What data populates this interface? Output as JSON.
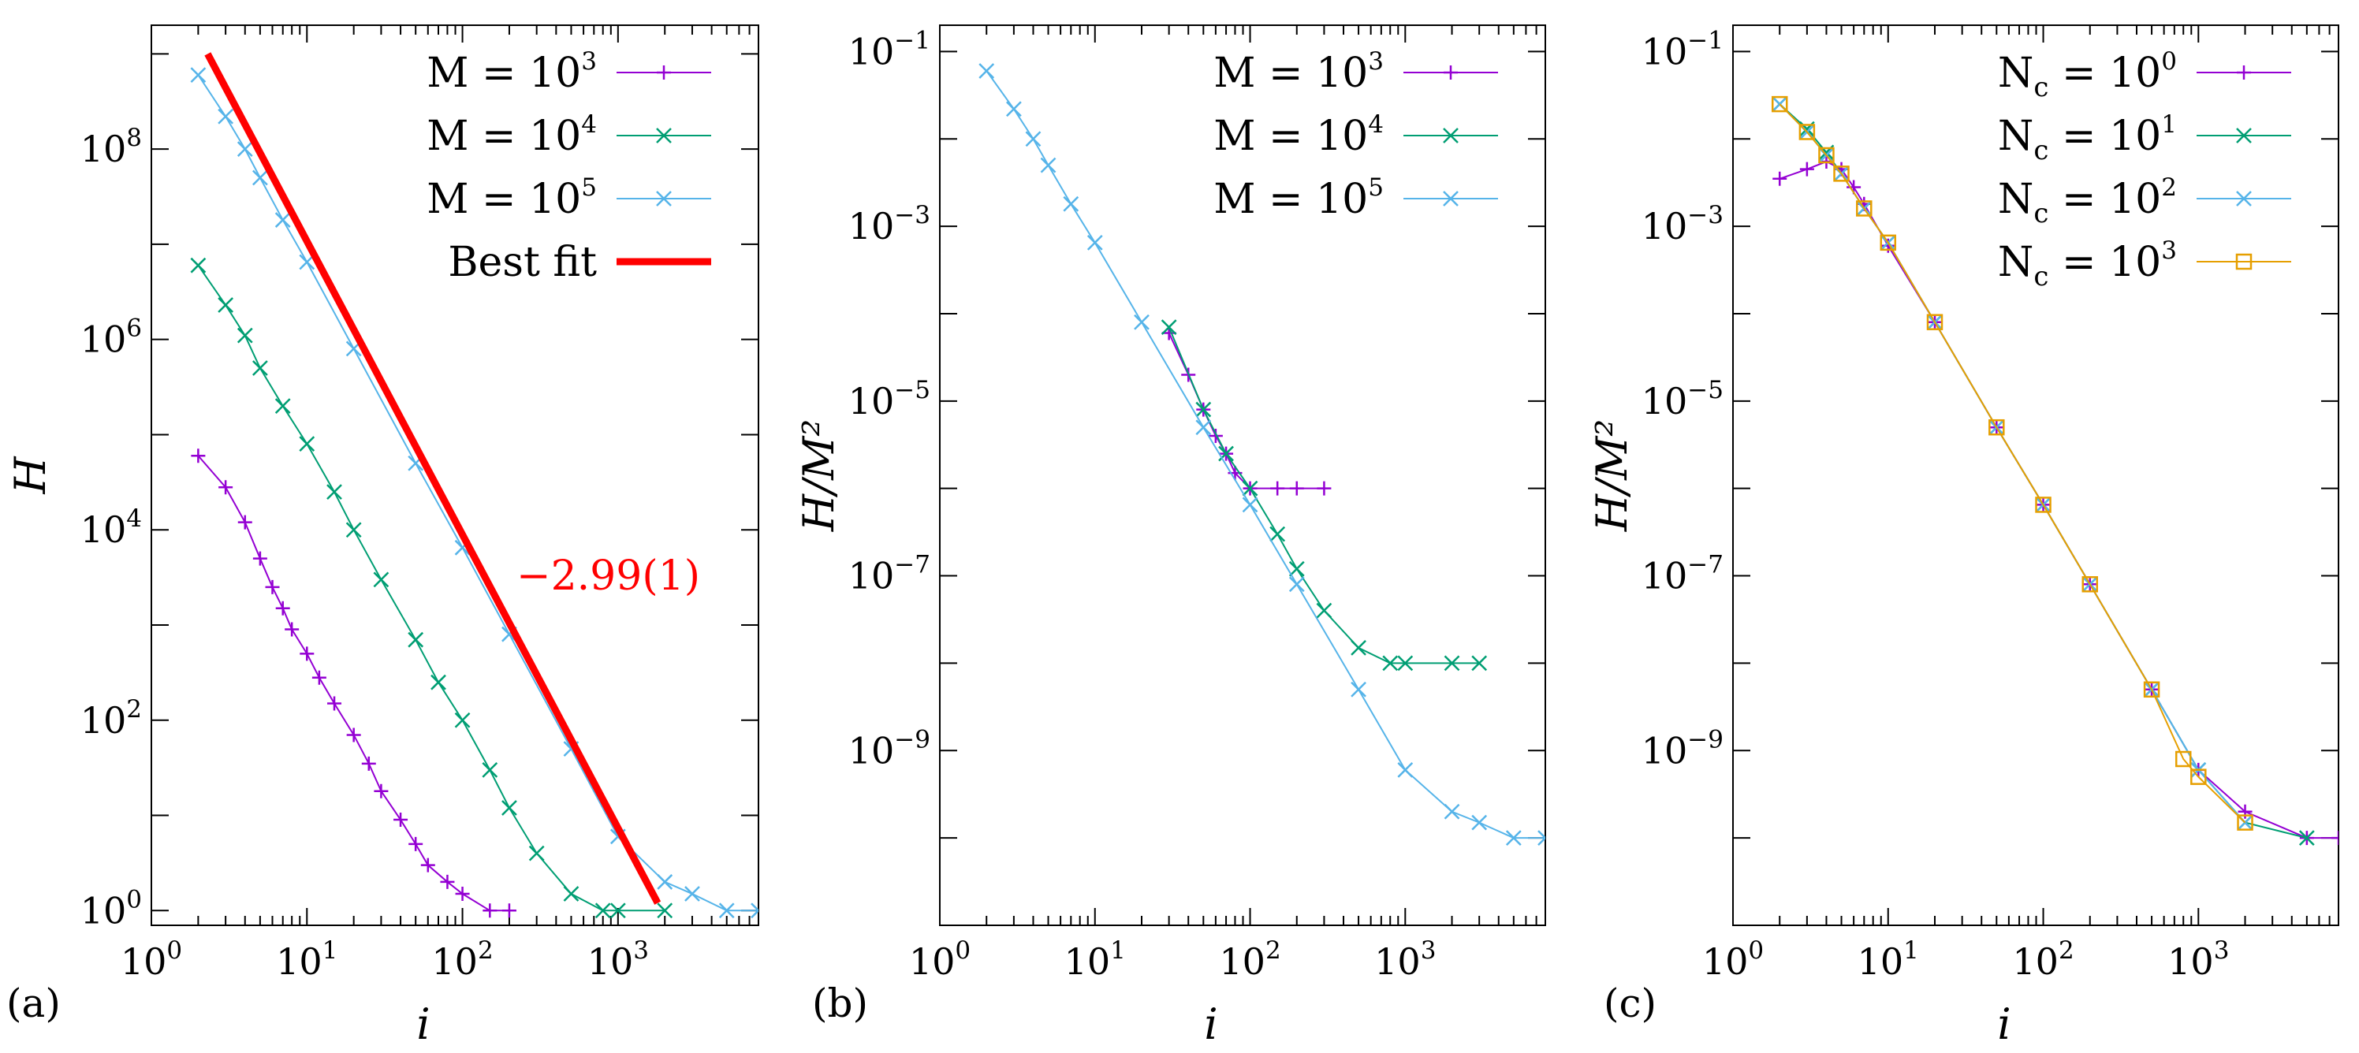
{
  "chart_data": [
    {
      "type": "line",
      "panel_label": "(a)",
      "xscale": "log",
      "yscale": "log",
      "xlim": [
        1,
        8000
      ],
      "ylim": [
        0.7,
        2000000000
      ],
      "xticks": [
        {
          "base": "10",
          "exp": "0",
          "v": 1
        },
        {
          "base": "10",
          "exp": "1",
          "v": 10
        },
        {
          "base": "10",
          "exp": "2",
          "v": 100
        },
        {
          "base": "10",
          "exp": "3",
          "v": 1000
        }
      ],
      "yticks": [
        {
          "base": "10",
          "exp": "0",
          "v": 1
        },
        {
          "base": "10",
          "exp": "2",
          "v": 100
        },
        {
          "base": "10",
          "exp": "4",
          "v": 10000
        },
        {
          "base": "10",
          "exp": "6",
          "v": 1000000
        },
        {
          "base": "10",
          "exp": "8",
          "v": 100000000
        }
      ],
      "xlabel": "i",
      "ylabel": "H",
      "legend_position": "top-right",
      "series": [
        {
          "name": "M = 10^3",
          "label_lhs": "M = 10",
          "label_exp": "3",
          "color": "#9400d3",
          "marker": "plus",
          "points": [
            [
              2,
              60000
            ],
            [
              3,
              28000
            ],
            [
              4,
              12000
            ],
            [
              5,
              5000
            ],
            [
              6,
              2500
            ],
            [
              7,
              1500
            ],
            [
              8,
              900
            ],
            [
              10,
              500
            ],
            [
              12,
              280
            ],
            [
              15,
              150
            ],
            [
              20,
              70
            ],
            [
              25,
              35
            ],
            [
              30,
              18
            ],
            [
              40,
              9
            ],
            [
              50,
              5
            ],
            [
              60,
              3
            ],
            [
              80,
              2
            ],
            [
              100,
              1.5
            ],
            [
              150,
              1
            ],
            [
              200,
              1
            ]
          ]
        },
        {
          "name": "M = 10^4",
          "label_lhs": "M = 10",
          "label_exp": "4",
          "color": "#009e73",
          "marker": "cross",
          "points": [
            [
              2,
              6000000
            ],
            [
              3,
              2300000
            ],
            [
              4,
              1100000
            ],
            [
              5,
              500000
            ],
            [
              7,
              200000
            ],
            [
              10,
              80000
            ],
            [
              15,
              25000
            ],
            [
              20,
              10000
            ],
            [
              30,
              3000
            ],
            [
              50,
              700
            ],
            [
              70,
              250
            ],
            [
              100,
              100
            ],
            [
              150,
              30
            ],
            [
              200,
              12
            ],
            [
              300,
              4
            ],
            [
              500,
              1.5
            ],
            [
              800,
              1
            ],
            [
              1000,
              1
            ],
            [
              2000,
              1
            ]
          ]
        },
        {
          "name": "M = 10^5",
          "label_lhs": "M = 10",
          "label_exp": "5",
          "color": "#56b4e9",
          "marker": "cross",
          "points": [
            [
              2,
              600000000
            ],
            [
              3,
              220000000
            ],
            [
              4,
              100000000
            ],
            [
              5,
              50000000
            ],
            [
              7,
              18000000
            ],
            [
              10,
              6500000
            ],
            [
              20,
              800000
            ],
            [
              50,
              50000
            ],
            [
              100,
              6500
            ],
            [
              200,
              800
            ],
            [
              500,
              50
            ],
            [
              1000,
              6
            ],
            [
              2000,
              2
            ],
            [
              3000,
              1.5
            ],
            [
              5000,
              1
            ],
            [
              8000,
              1
            ]
          ]
        },
        {
          "name": "Best fit",
          "color": "#ff0000",
          "marker": "none",
          "points": [
            [
              2.3,
              1000000000
            ],
            [
              1800,
              1.2
            ]
          ]
        }
      ],
      "annotations": [
        {
          "text": "−2.99(1)",
          "color": "#ff0000"
        }
      ]
    },
    {
      "type": "line",
      "panel_label": "(b)",
      "xscale": "log",
      "yscale": "log",
      "xlim": [
        1,
        8000
      ],
      "ylim": [
        1e-11,
        0.2
      ],
      "xticks": [
        {
          "base": "10",
          "exp": "0",
          "v": 1
        },
        {
          "base": "10",
          "exp": "1",
          "v": 10
        },
        {
          "base": "10",
          "exp": "2",
          "v": 100
        },
        {
          "base": "10",
          "exp": "3",
          "v": 1000
        }
      ],
      "yticks": [
        {
          "base": "10",
          "exp": "−9",
          "v": 1e-09
        },
        {
          "base": "10",
          "exp": "−7",
          "v": 1e-07
        },
        {
          "base": "10",
          "exp": "−5",
          "v": 1e-05
        },
        {
          "base": "10",
          "exp": "−3",
          "v": 0.001
        },
        {
          "base": "10",
          "exp": "−1",
          "v": 0.1
        }
      ],
      "xlabel": "i",
      "ylabel": "H/M²",
      "legend_position": "top-right",
      "series": [
        {
          "name": "M = 10^3",
          "label_lhs": "M = 10",
          "label_exp": "3",
          "color": "#9400d3",
          "marker": "plus",
          "points": [
            [
              30,
              6e-05
            ],
            [
              40,
              2e-05
            ],
            [
              50,
              8e-06
            ],
            [
              60,
              4e-06
            ],
            [
              70,
              2.5e-06
            ],
            [
              80,
              1.5e-06
            ],
            [
              100,
              1e-06
            ],
            [
              150,
              1e-06
            ],
            [
              200,
              1e-06
            ],
            [
              300,
              1e-06
            ]
          ]
        },
        {
          "name": "M = 10^4",
          "label_lhs": "M = 10",
          "label_exp": "4",
          "color": "#009e73",
          "marker": "cross",
          "points": [
            [
              30,
              7e-05
            ],
            [
              50,
              8e-06
            ],
            [
              70,
              2.5e-06
            ],
            [
              100,
              1e-06
            ],
            [
              150,
              3e-07
            ],
            [
              200,
              1.2e-07
            ],
            [
              300,
              4e-08
            ],
            [
              500,
              1.5e-08
            ],
            [
              800,
              1e-08
            ],
            [
              1000,
              1e-08
            ],
            [
              2000,
              1e-08
            ],
            [
              3000,
              1e-08
            ]
          ]
        },
        {
          "name": "M = 10^5",
          "label_lhs": "M = 10",
          "label_exp": "5",
          "color": "#56b4e9",
          "marker": "cross",
          "points": [
            [
              2,
              0.06
            ],
            [
              3,
              0.022
            ],
            [
              4,
              0.01
            ],
            [
              5,
              0.005
            ],
            [
              7,
              0.0018
            ],
            [
              10,
              0.00065
            ],
            [
              20,
              8e-05
            ],
            [
              50,
              5e-06
            ],
            [
              100,
              6.5e-07
            ],
            [
              200,
              8e-08
            ],
            [
              500,
              5e-09
            ],
            [
              1000,
              6e-10
            ],
            [
              2000,
              2e-10
            ],
            [
              3000,
              1.5e-10
            ],
            [
              5000,
              1e-10
            ],
            [
              8000,
              1e-10
            ]
          ]
        }
      ]
    },
    {
      "type": "line",
      "panel_label": "(c)",
      "xscale": "log",
      "yscale": "log",
      "xlim": [
        1,
        8000
      ],
      "ylim": [
        1e-11,
        0.2
      ],
      "xticks": [
        {
          "base": "10",
          "exp": "0",
          "v": 1
        },
        {
          "base": "10",
          "exp": "1",
          "v": 10
        },
        {
          "base": "10",
          "exp": "2",
          "v": 100
        },
        {
          "base": "10",
          "exp": "3",
          "v": 1000
        }
      ],
      "yticks": [
        {
          "base": "10",
          "exp": "−9",
          "v": 1e-09
        },
        {
          "base": "10",
          "exp": "−7",
          "v": 1e-07
        },
        {
          "base": "10",
          "exp": "−5",
          "v": 1e-05
        },
        {
          "base": "10",
          "exp": "−3",
          "v": 0.001
        },
        {
          "base": "10",
          "exp": "−1",
          "v": 0.1
        }
      ],
      "xlabel": "i",
      "ylabel": "H/M²",
      "legend_position": "top-right",
      "series": [
        {
          "name": "N_c = 10^0",
          "label_lhs": "N",
          "label_sub": "c",
          "label_mid": " = 10",
          "label_exp": "0",
          "color": "#9400d3",
          "marker": "plus",
          "points": [
            [
              2,
              0.0035
            ],
            [
              3,
              0.0045
            ],
            [
              4,
              0.0055
            ],
            [
              5,
              0.0045
            ],
            [
              6,
              0.0028
            ],
            [
              7,
              0.0018
            ],
            [
              10,
              0.0006
            ],
            [
              20,
              8e-05
            ],
            [
              50,
              5e-06
            ],
            [
              100,
              6.5e-07
            ],
            [
              200,
              8e-08
            ],
            [
              500,
              5e-09
            ],
            [
              1000,
              6e-10
            ],
            [
              2000,
              2e-10
            ],
            [
              5000,
              1e-10
            ],
            [
              8000,
              1e-10
            ]
          ]
        },
        {
          "name": "N_c = 10^1",
          "label_lhs": "N",
          "label_sub": "c",
          "label_mid": " = 10",
          "label_exp": "1",
          "color": "#009e73",
          "marker": "cross",
          "points": [
            [
              2,
              0.025
            ],
            [
              3,
              0.013
            ],
            [
              4,
              0.007
            ],
            [
              5,
              0.004
            ],
            [
              7,
              0.0016
            ],
            [
              10,
              0.00065
            ],
            [
              20,
              8e-05
            ],
            [
              50,
              5e-06
            ],
            [
              100,
              6.5e-07
            ],
            [
              200,
              8e-08
            ],
            [
              500,
              5e-09
            ],
            [
              1000,
              6e-10
            ],
            [
              2000,
              1.5e-10
            ],
            [
              5000,
              1e-10
            ]
          ]
        },
        {
          "name": "N_c = 10^2",
          "label_lhs": "N",
          "label_sub": "c",
          "label_mid": " = 10",
          "label_exp": "2",
          "color": "#56b4e9",
          "marker": "cross",
          "points": [
            [
              2,
              0.025
            ],
            [
              3,
              0.012
            ],
            [
              4,
              0.0065
            ],
            [
              5,
              0.004
            ],
            [
              7,
              0.0016
            ],
            [
              10,
              0.00065
            ],
            [
              20,
              8e-05
            ],
            [
              50,
              5e-06
            ],
            [
              100,
              6.5e-07
            ],
            [
              200,
              8e-08
            ],
            [
              500,
              5e-09
            ],
            [
              1000,
              6e-10
            ],
            [
              2000,
              1.5e-10
            ]
          ]
        },
        {
          "name": "N_c = 10^3",
          "label_lhs": "N",
          "label_sub": "c",
          "label_mid": " = 10",
          "label_exp": "3",
          "color": "#e69f00",
          "marker": "square",
          "points": [
            [
              2,
              0.025
            ],
            [
              3,
              0.012
            ],
            [
              4,
              0.0065
            ],
            [
              5,
              0.004
            ],
            [
              7,
              0.0016
            ],
            [
              10,
              0.00065
            ],
            [
              20,
              8e-05
            ],
            [
              50,
              5e-06
            ],
            [
              100,
              6.5e-07
            ],
            [
              200,
              8e-08
            ],
            [
              500,
              5e-09
            ],
            [
              800,
              8e-10
            ],
            [
              1000,
              5e-10
            ],
            [
              2000,
              1.5e-10
            ]
          ]
        }
      ]
    }
  ]
}
